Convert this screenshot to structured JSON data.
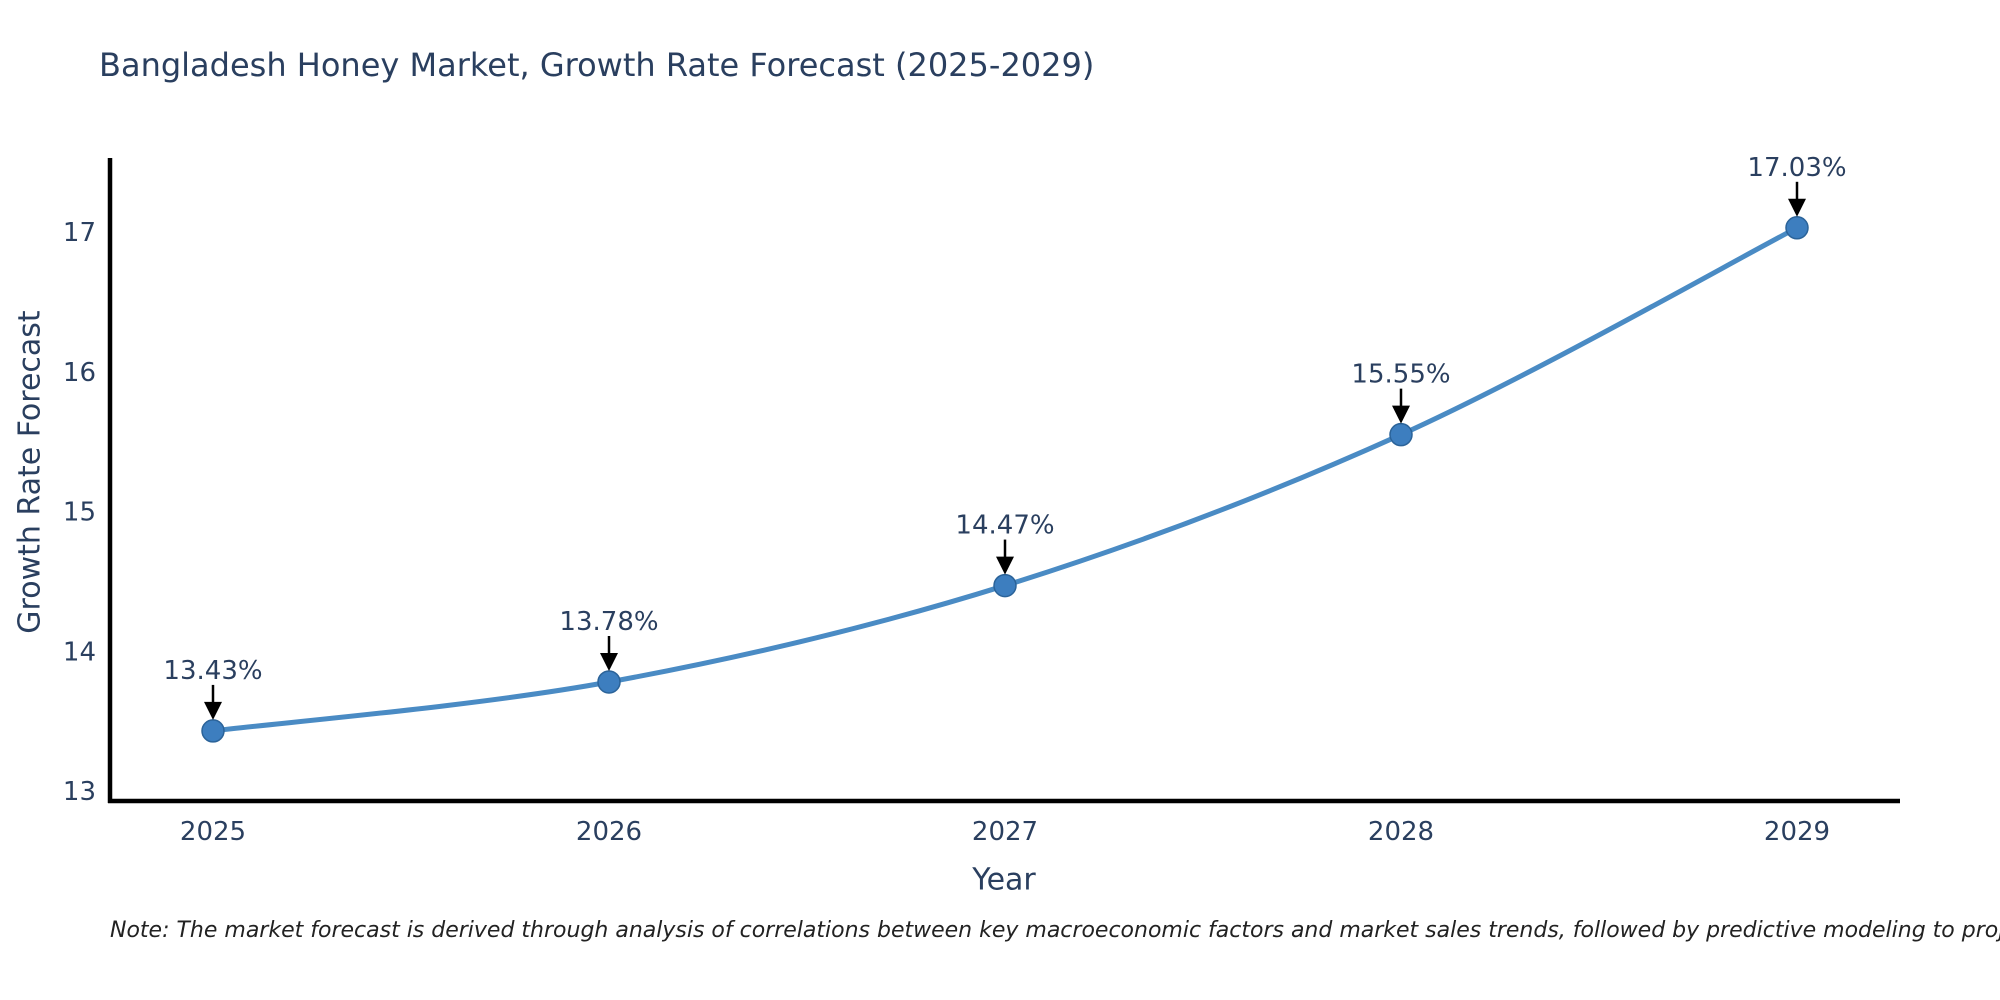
{
  "title": "Bangladesh Honey Market, Growth Rate Forecast (2025-2029)",
  "note": "Note: The market forecast is derived through analysis of correlations between key macroeconomic factors and market sales trends, followed by predictive modeling to project future sales",
  "chart_data": {
    "type": "line",
    "title": "Bangladesh Honey Market, Growth Rate Forecast (2025-2029)",
    "xlabel": "Year",
    "ylabel": "Growth Rate Forecast",
    "x": [
      2025,
      2026,
      2027,
      2028,
      2029
    ],
    "y": [
      13.43,
      13.78,
      14.47,
      15.55,
      17.03
    ],
    "point_labels": [
      "13.43%",
      "13.78%",
      "14.47%",
      "15.55%",
      "17.03%"
    ],
    "xticks": [
      "2025",
      "2026",
      "2027",
      "2028",
      "2029"
    ],
    "yticks": [
      13,
      14,
      15,
      16,
      17
    ],
    "xlim": [
      2024.74,
      2029.26
    ],
    "ylim": [
      12.93,
      17.55
    ],
    "line_shape": "spline",
    "grid": false,
    "legend": false,
    "colors": {
      "line": "#4a8bc4",
      "marker_fill": "#3d7ebf",
      "marker_edge": "#2b6399",
      "axis": "#000000",
      "tick_text": "#2a3f5f",
      "annotation_text": "#2a3f5f",
      "annotation_arrow": "#000000",
      "background": "#ffffff"
    }
  }
}
